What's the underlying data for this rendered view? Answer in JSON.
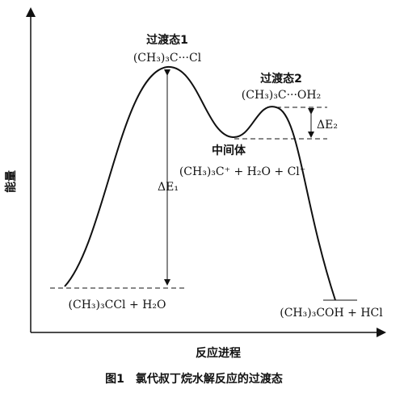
{
  "axes": {
    "y_label": "能量",
    "x_label": "反应进程"
  },
  "transition_states": [
    {
      "title": "过渡态1",
      "species": "(CH₃)₃C···Cl"
    },
    {
      "title": "过渡态2",
      "species": "(CH₃)₃C···OH₂"
    }
  ],
  "intermediate": {
    "title": "中间体",
    "species": "(CH₃)₃C⁺ + H₂O + Cl⁻"
  },
  "energy_gaps": [
    "ΔE₁",
    "ΔE₂"
  ],
  "reactants": "(CH₃)₃CCl + H₂O",
  "products": "(CH₃)₃COH + HCl",
  "caption": "图1　氯代叔丁烷水解反应的过渡态"
}
